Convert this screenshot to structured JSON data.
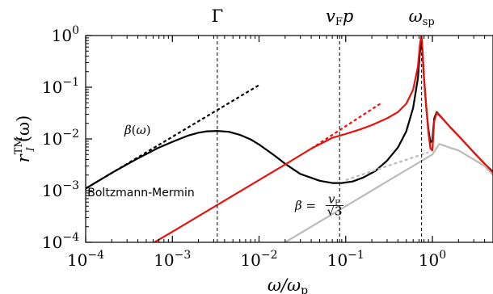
{
  "chart_data": {
    "type": "line",
    "xscale": "log",
    "yscale": "log",
    "xlim": [
      0.0001,
      5
    ],
    "ylim": [
      0.0001,
      1
    ],
    "xlabel": "ω/ω_p",
    "ylabel": "r_I^TM(ω)",
    "xticks": [
      {
        "value": 0.0001,
        "base": "10",
        "exp": "−4"
      },
      {
        "value": 0.001,
        "base": "10",
        "exp": "−3"
      },
      {
        "value": 0.01,
        "base": "10",
        "exp": "−2"
      },
      {
        "value": 0.1,
        "base": "10",
        "exp": "−1"
      },
      {
        "value": 1,
        "base": "10",
        "exp": "0"
      }
    ],
    "yticks": [
      {
        "value": 0.0001,
        "base": "10",
        "exp": "−4"
      },
      {
        "value": 0.001,
        "base": "10",
        "exp": "−3"
      },
      {
        "value": 0.01,
        "base": "10",
        "exp": "−2"
      },
      {
        "value": 0.1,
        "base": "10",
        "exp": "−1"
      },
      {
        "value": 1,
        "base": "10",
        "exp": "0"
      }
    ],
    "vlines": [
      {
        "x": 0.0033,
        "label": "Γ"
      },
      {
        "x": 0.085,
        "label": "v_F p"
      },
      {
        "x": 0.75,
        "label": "ω_sp"
      }
    ],
    "annotations": [
      {
        "text": "β(ω)",
        "x": 0.00028,
        "y": 0.0125
      },
      {
        "text": "Boltzmann-Mermin",
        "x": 0.000105,
        "y": 0.00078
      },
      {
        "text": "β = v_F/√3",
        "x": 0.026,
        "y": 0.00043
      }
    ],
    "series": [
      {
        "style": "black-solid",
        "color": "#000000",
        "points": [
          [
            0.0001,
            0.0011
          ],
          [
            0.0002,
            0.0022
          ],
          [
            0.0004,
            0.0042
          ],
          [
            0.0007,
            0.0068
          ],
          [
            0.001,
            0.0088
          ],
          [
            0.0015,
            0.0115
          ],
          [
            0.002,
            0.0132
          ],
          [
            0.0025,
            0.014
          ],
          [
            0.0033,
            0.0143
          ],
          [
            0.0045,
            0.0137
          ],
          [
            0.006,
            0.012
          ],
          [
            0.008,
            0.0098
          ],
          [
            0.01,
            0.0078
          ],
          [
            0.015,
            0.0048
          ],
          [
            0.02,
            0.0033
          ],
          [
            0.03,
            0.0021
          ],
          [
            0.05,
            0.00155
          ],
          [
            0.07,
            0.0014
          ],
          [
            0.09,
            0.0014
          ],
          [
            0.12,
            0.0015
          ],
          [
            0.16,
            0.0018
          ],
          [
            0.22,
            0.0024
          ],
          [
            0.3,
            0.0038
          ],
          [
            0.4,
            0.0068
          ],
          [
            0.5,
            0.014
          ],
          [
            0.6,
            0.04
          ],
          [
            0.68,
            0.15
          ],
          [
            0.72,
            0.5
          ],
          [
            0.745,
            0.95
          ],
          [
            0.76,
            0.7
          ],
          [
            0.8,
            0.15
          ],
          [
            0.85,
            0.04
          ],
          [
            0.9,
            0.015
          ],
          [
            0.95,
            0.0085
          ],
          [
            1.0,
            0.0095
          ],
          [
            1.05,
            0.025
          ],
          [
            1.12,
            0.033
          ],
          [
            1.3,
            0.025
          ],
          [
            1.6,
            0.017
          ],
          [
            2.0,
            0.0115
          ],
          [
            3.0,
            0.0055
          ],
          [
            4.0,
            0.0033
          ],
          [
            5.0,
            0.0023
          ]
        ]
      },
      {
        "style": "red-solid",
        "color": "#e8120c",
        "points": [
          [
            0.00062,
            0.0001
          ],
          [
            0.001,
            0.00016
          ],
          [
            0.002,
            0.00032
          ],
          [
            0.005,
            0.0008
          ],
          [
            0.01,
            0.0016
          ],
          [
            0.02,
            0.0032
          ],
          [
            0.04,
            0.0065
          ],
          [
            0.07,
            0.0105
          ],
          [
            0.1,
            0.0125
          ],
          [
            0.15,
            0.0155
          ],
          [
            0.2,
            0.0185
          ],
          [
            0.3,
            0.025
          ],
          [
            0.4,
            0.033
          ],
          [
            0.5,
            0.048
          ],
          [
            0.6,
            0.09
          ],
          [
            0.68,
            0.25
          ],
          [
            0.72,
            0.7
          ],
          [
            0.745,
            0.97
          ],
          [
            0.76,
            0.75
          ],
          [
            0.8,
            0.15
          ],
          [
            0.85,
            0.04
          ],
          [
            0.9,
            0.013
          ],
          [
            0.95,
            0.0065
          ],
          [
            1.0,
            0.006
          ],
          [
            1.05,
            0.022
          ],
          [
            1.12,
            0.032
          ],
          [
            1.3,
            0.025
          ],
          [
            1.6,
            0.017
          ],
          [
            2.0,
            0.0115
          ],
          [
            3.0,
            0.0055
          ],
          [
            4.0,
            0.0033
          ],
          [
            5.0,
            0.0022
          ]
        ]
      },
      {
        "style": "grey-solid",
        "color": "#bbbbbb",
        "points": [
          [
            0.02,
            0.0001
          ],
          [
            0.05,
            0.00025
          ],
          [
            0.1,
            0.0005
          ],
          [
            0.2,
            0.001
          ],
          [
            0.4,
            0.002
          ],
          [
            0.7,
            0.0035
          ],
          [
            0.9,
            0.0045
          ],
          [
            1.0,
            0.005
          ],
          [
            1.2,
            0.008
          ],
          [
            1.5,
            0.007
          ],
          [
            2.0,
            0.006
          ],
          [
            3.0,
            0.004
          ],
          [
            4.0,
            0.003
          ],
          [
            5.0,
            0.002
          ]
        ]
      },
      {
        "style": "black-dashed",
        "color": "#000000",
        "points": [
          [
            0.0001,
            0.0011
          ],
          [
            0.01,
            0.11
          ]
        ]
      },
      {
        "style": "red-dashed",
        "color": "#e8120c",
        "points": [
          [
            0.04,
            0.0065
          ],
          [
            0.25,
            0.048
          ]
        ]
      },
      {
        "style": "grey-dashed",
        "color": "#bbbbbb",
        "points": [
          [
            0.1,
            0.0016
          ],
          [
            0.9,
            0.0055
          ]
        ]
      }
    ]
  }
}
